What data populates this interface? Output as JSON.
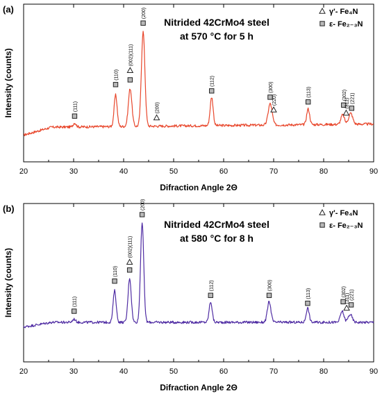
{
  "chart_data": [
    {
      "type": "line",
      "panel_label": "(a)",
      "title_lines": [
        "Nitrided 42CrMo4 steel",
        "at 570 °C for 5 h"
      ],
      "xlabel": "Difraction Angle 2Θ",
      "ylabel": "Intensity (counts)",
      "xlim": [
        20,
        90
      ],
      "ylim": [
        0,
        100
      ],
      "xticks": [
        20,
        30,
        40,
        50,
        60,
        70,
        80,
        90
      ],
      "grid": false,
      "legend_position": "top-right",
      "legend": [
        {
          "marker": "triangle",
          "label": "γ'- Fe₄N"
        },
        {
          "marker": "square",
          "label": "ε- Fe₂₋₃N"
        }
      ],
      "series": [
        {
          "color": "#e8462b",
          "baseline": 22,
          "start_level": 17,
          "end_level": 24,
          "peaks": [
            {
              "x": 30.2,
              "y": 24.5,
              "w": 0.3
            },
            {
              "x": 38.4,
              "y": 42.0,
              "w": 0.3
            },
            {
              "x": 41.3,
              "y": 46.0,
              "w": 0.35
            },
            {
              "x": 43.9,
              "y": 82.0,
              "w": 0.35
            },
            {
              "x": 57.6,
              "y": 40.0,
              "w": 0.3
            },
            {
              "x": 69.3,
              "y": 35.5,
              "w": 0.4
            },
            {
              "x": 76.9,
              "y": 32.0,
              "w": 0.3
            },
            {
              "x": 83.8,
              "y": 28.0,
              "w": 0.35
            },
            {
              "x": 85.4,
              "y": 29.0,
              "w": 0.4
            }
          ]
        }
      ],
      "annotations": [
        {
          "x": 30.2,
          "y": 29,
          "marker": "square",
          "text": "(111)"
        },
        {
          "x": 38.4,
          "y": 49,
          "marker": "square",
          "text": "(110)"
        },
        {
          "x": 41.3,
          "y": 52,
          "marker": "square",
          "text": ""
        },
        {
          "x": 41.3,
          "y": 58,
          "marker": "triangle",
          "text": "(002)(111)"
        },
        {
          "x": 43.9,
          "y": 88,
          "marker": "square",
          "text": "(200)"
        },
        {
          "x": 46.6,
          "y": 28,
          "marker": "triangle",
          "text": "(200)"
        },
        {
          "x": 57.6,
          "y": 45,
          "marker": "square",
          "text": "(112)"
        },
        {
          "x": 69.3,
          "y": 41,
          "marker": "square",
          "text": "(300)"
        },
        {
          "x": 70.0,
          "y": 33,
          "marker": "triangle",
          "text": "(220)"
        },
        {
          "x": 76.9,
          "y": 38,
          "marker": "square",
          "text": "(113)"
        },
        {
          "x": 84.0,
          "y": 36,
          "marker": "square",
          "text": "(302)"
        },
        {
          "x": 84.5,
          "y": 31,
          "marker": "triangle",
          "text": "(311)"
        },
        {
          "x": 85.6,
          "y": 34,
          "marker": "square",
          "text": "(221)"
        }
      ]
    },
    {
      "type": "line",
      "panel_label": "(b)",
      "title_lines": [
        "Nitrided 42CrMo4 steel",
        "at 580 °C for 8 h"
      ],
      "xlabel": "Difraction Angle 2Θ",
      "ylabel": "Intensity (counts)",
      "xlim": [
        20,
        90
      ],
      "ylim": [
        0,
        100
      ],
      "xticks": [
        20,
        30,
        40,
        50,
        60,
        70,
        80,
        90
      ],
      "grid": false,
      "legend_position": "top-right",
      "legend": [
        {
          "marker": "triangle",
          "label": "γ'- Fe₄N"
        },
        {
          "marker": "square",
          "label": "ε- Fe₂₋₃N"
        }
      ],
      "series": [
        {
          "color": "#4f2ca3",
          "baseline": 25,
          "start_level": 22,
          "end_level": 25,
          "peaks": [
            {
              "x": 30.1,
              "y": 27.0,
              "w": 0.3
            },
            {
              "x": 38.2,
              "y": 45.0,
              "w": 0.3
            },
            {
              "x": 41.2,
              "y": 53.0,
              "w": 0.32
            },
            {
              "x": 43.7,
              "y": 88.0,
              "w": 0.32
            },
            {
              "x": 57.4,
              "y": 38.0,
              "w": 0.3
            },
            {
              "x": 69.1,
              "y": 38.0,
              "w": 0.35
            },
            {
              "x": 76.8,
              "y": 34.0,
              "w": 0.3
            },
            {
              "x": 83.7,
              "y": 32.0,
              "w": 0.35
            },
            {
              "x": 85.3,
              "y": 30.0,
              "w": 0.4
            }
          ]
        }
      ],
      "annotations": [
        {
          "x": 30.1,
          "y": 32,
          "marker": "square",
          "text": "(111)"
        },
        {
          "x": 38.2,
          "y": 51,
          "marker": "square",
          "text": "(110)"
        },
        {
          "x": 41.2,
          "y": 58,
          "marker": "square",
          "text": ""
        },
        {
          "x": 41.2,
          "y": 63,
          "marker": "triangle",
          "text": "(002)(111)"
        },
        {
          "x": 43.7,
          "y": 93,
          "marker": "square",
          "text": "(200)"
        },
        {
          "x": 57.4,
          "y": 42,
          "marker": "square",
          "text": "(112)"
        },
        {
          "x": 69.1,
          "y": 42,
          "marker": "square",
          "text": "(300)"
        },
        {
          "x": 76.8,
          "y": 37,
          "marker": "square",
          "text": "(113)"
        },
        {
          "x": 83.9,
          "y": 38,
          "marker": "square",
          "text": "(302)"
        },
        {
          "x": 84.6,
          "y": 34,
          "marker": "triangle",
          "text": "(311)"
        },
        {
          "x": 85.5,
          "y": 36,
          "marker": "square",
          "text": "(221)"
        }
      ]
    }
  ]
}
